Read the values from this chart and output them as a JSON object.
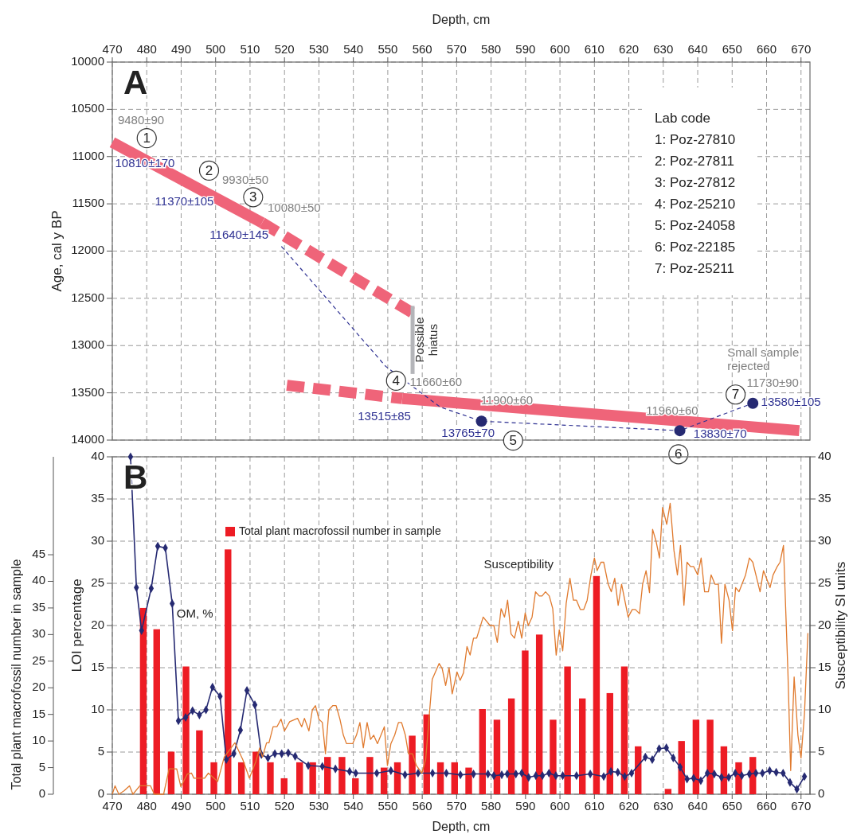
{
  "chart_data": [
    {
      "type": "line",
      "title": "A",
      "xlabel": "Depth, cm",
      "ylabel": "Age, cal y BP",
      "xlim": [
        470,
        672.6
      ],
      "xticks": [
        470,
        480,
        490,
        500,
        510,
        520,
        530,
        540,
        550,
        560,
        570,
        580,
        590,
        600,
        610,
        620,
        630,
        640,
        650,
        660,
        670
      ],
      "ylim": [
        14000,
        10000
      ],
      "yticks": [
        10000,
        10500,
        11000,
        11500,
        12000,
        12500,
        13000,
        13500,
        14000
      ],
      "grid": true,
      "legend": false,
      "series": [
        {
          "color": "#ef6479",
          "line_style": "solid",
          "x": [
            470,
            513.5
          ],
          "values": [
            10850,
            11700
          ]
        },
        {
          "color": "#ef6479",
          "line_style": "dashed",
          "x": [
            513.5,
            557
          ],
          "values": [
            11700,
            12650
          ]
        },
        {
          "color": "#ef6479",
          "line_style": "dashed",
          "x": [
            520.7,
            554.2
          ],
          "values": [
            13420,
            13560
          ]
        },
        {
          "color": "#ef6479",
          "line_style": "solid",
          "x": [
            554.2,
            669.5
          ],
          "values": [
            13560,
            13900
          ]
        },
        {
          "name": "Possible hiatus",
          "color": "#b4b5b9",
          "line_style": "solid",
          "x": [
            557.2,
            557.2
          ],
          "values": [
            12580,
            13300
          ]
        },
        {
          "color": "#2e3192",
          "line_style": "dashed",
          "marker": "none",
          "x": [
            519.1,
            549.4,
            565.2,
            577.2,
            634.8,
            656
          ],
          "values": [
            11950,
            13220,
            13650,
            13800,
            13900,
            13610
          ]
        },
        {
          "type": "scatter",
          "color": "#262a72",
          "marker": "circle",
          "x": [
            577.2,
            634.8,
            656
          ],
          "values": [
            13800,
            13900,
            13610
          ]
        }
      ],
      "annotations": [
        "9480±90",
        "10810±170",
        "9930±50",
        "11370±105",
        "10080±50",
        "11640±145",
        "11660±60",
        "13515±85",
        "11900±60",
        "13765±70",
        "11960±60",
        "13830±70",
        "11730±90",
        "13580±105",
        "Small sample rejected",
        "1",
        "2",
        "3",
        "4",
        "5",
        "6",
        "7",
        "Lab code",
        "1: Poz-27810",
        "2: Poz-27811",
        "3: Poz-27812",
        "4: Poz-25210",
        "5: Poz-24058",
        "6: Poz-22185",
        "7: Poz-25211"
      ]
    },
    {
      "type": "bar",
      "title": "B",
      "xlabel": "Depth, cm",
      "ylabel": "LOI percentage",
      "y2label": "Susceptibility SI units",
      "y3label": "Total plant macrofossil number in sample",
      "xlim": [
        470,
        672.6
      ],
      "xticks": [
        470,
        480,
        490,
        500,
        510,
        520,
        530,
        540,
        550,
        560,
        570,
        580,
        590,
        600,
        610,
        620,
        630,
        640,
        650,
        660,
        670
      ],
      "ylim": [
        0,
        40
      ],
      "yticks": [
        0,
        5,
        10,
        15,
        20,
        25,
        30,
        35,
        40
      ],
      "y2lim": [
        0,
        40
      ],
      "y2ticks": [
        0,
        5,
        10,
        15,
        20,
        25,
        30,
        35,
        40
      ],
      "y3lim": [
        0,
        63.4
      ],
      "y3ticks": [
        0,
        5,
        10,
        15,
        20,
        25,
        30,
        35,
        40,
        45
      ],
      "grid": true,
      "legend": "top left",
      "series": [
        {
          "name": "Total plant macrofossil number in sample",
          "color": "#ed1c24",
          "axis": "y3",
          "x": [
            479,
            482.9,
            487.1,
            491.4,
            495.3,
            499.5,
            503.6,
            507.5,
            511.7,
            515.9,
            519.9,
            524.4,
            528.2,
            532.5,
            536.7,
            540.6,
            544.8,
            548.9,
            552.8,
            557.1,
            561.3,
            565.3,
            569.4,
            573.5,
            577.5,
            581.7,
            585.9,
            589.9,
            594,
            598,
            602.2,
            606.5,
            610.6,
            614.5,
            618.7,
            622.7,
            631.4,
            635.3,
            639.5,
            643.6,
            647.6,
            651.9,
            656
          ],
          "values": [
            35,
            31,
            8,
            24,
            12,
            6,
            46,
            6,
            8,
            6,
            3,
            6,
            6,
            7,
            7,
            3,
            7,
            5,
            6,
            11,
            15,
            6,
            6,
            5,
            16,
            14,
            18,
            27,
            30,
            14,
            24,
            18,
            41,
            19,
            24,
            9,
            1,
            10,
            14,
            14,
            9,
            6,
            7
          ]
        },
        {
          "type": "line",
          "color": "#262a72",
          "axis": "y",
          "marker": "diamond",
          "x": [
            475.3,
            477,
            478.5,
            481.3,
            483.2,
            485.4,
            487.4,
            489.2,
            491.3,
            493.3,
            495.3,
            497.2,
            499.1,
            501.3,
            503.1,
            505.3,
            507.2,
            509.1,
            511.4,
            513.3,
            515.2,
            517.2,
            519.2,
            521.1,
            523.1,
            526.9,
            531,
            534.8,
            538.9,
            540.7,
            546.8,
            550.9,
            555,
            558.8,
            563,
            567,
            571.1,
            574.9,
            579.1,
            580.8,
            583.1,
            584.7,
            587.2,
            588.9,
            590.9,
            593,
            594.9,
            596.8,
            598.8,
            600.8,
            604.8,
            608.8,
            612.7,
            614.8,
            616.8,
            618.8,
            620.8,
            624.8,
            626.8,
            628.8,
            630.9,
            632.9,
            634.9,
            636.9,
            638.8,
            640.9,
            642.8,
            644.8,
            646.9,
            649,
            650.9,
            652.8,
            655,
            656.9,
            658.8,
            660.9,
            662.8,
            664.8,
            666.8,
            668.8,
            671
          ],
          "values": [
            40,
            24.5,
            19.4,
            24.4,
            29.4,
            29.2,
            22.6,
            8.7,
            9.1,
            9.9,
            9.4,
            10,
            12.7,
            11.6,
            4.1,
            4.8,
            7.6,
            12.3,
            10.6,
            4.7,
            4.3,
            4.8,
            4.8,
            4.9,
            4.5,
            3.4,
            3.3,
            3,
            2.7,
            2.5,
            2.5,
            2.8,
            2.3,
            2.5,
            2.5,
            2.5,
            2.3,
            2.4,
            2.4,
            2.2,
            2.3,
            2.4,
            2.4,
            2.5,
            2,
            2.2,
            2.2,
            2.5,
            2.2,
            2.2,
            2.2,
            2.4,
            2.1,
            2.7,
            2.6,
            2.1,
            2.5,
            4.4,
            4.1,
            5.4,
            5.5,
            4.3,
            3.2,
            1.8,
            1.9,
            1.6,
            2.5,
            2.4,
            2,
            2,
            2.5,
            2.2,
            2.4,
            2.5,
            2.5,
            2.8,
            2.6,
            2.5,
            1.4,
            0.6,
            2.1
          ]
        },
        {
          "type": "line",
          "color": "#e07a2e",
          "axis": "y2",
          "marker": "none",
          "x": [
            470,
            470.8,
            471.9,
            473.4,
            475,
            476,
            478,
            481.1,
            482.2,
            484.9,
            486.5,
            488.7,
            489.9,
            491.8,
            493,
            493.7,
            496.8,
            497.9,
            500.6,
            502.5,
            505.6,
            507.9,
            509.8,
            511.7,
            512.8,
            513.6,
            514.8,
            515.5,
            516.7,
            517.8,
            519,
            520,
            521.5,
            523.8,
            525,
            525.8,
            527.1,
            528.1,
            529,
            530,
            531,
            531.9,
            532.9,
            534,
            535,
            536.1,
            537.1,
            538,
            539.8,
            540.9,
            541.9,
            542.9,
            544,
            545,
            545.9,
            547,
            549,
            549.9,
            550.9,
            552,
            553.1,
            554,
            555.1,
            556,
            557.2,
            558.3,
            559.9,
            561,
            562.9,
            564.9,
            565.8,
            566.8,
            567.8,
            568.7,
            570.1,
            571,
            572,
            573,
            573.9,
            574.9,
            575.8,
            576.8,
            577.7,
            579.7,
            580.8,
            581.8,
            582.9,
            583.9,
            584.8,
            585.8,
            586.8,
            587.9,
            588.9,
            589.9,
            590.8,
            591.9,
            592.9,
            594,
            594.8,
            595.8,
            596.9,
            597.9,
            598.9,
            599.8,
            600.8,
            601.8,
            602.9,
            603.9,
            604.8,
            605.9,
            606.9,
            607.9,
            609,
            610,
            610.8,
            611.9,
            612.7,
            614,
            614.9,
            615.9,
            616.9,
            617.9,
            619.8,
            621,
            621.9,
            623.1,
            624,
            625,
            626,
            626.9,
            627.9,
            628.9,
            629.8,
            631,
            632,
            633.1,
            634.1,
            635,
            636,
            636.9,
            637.9,
            638.8,
            640,
            641,
            642,
            643.1,
            643.9,
            645,
            646,
            646.9,
            647.9,
            649.1,
            650.1,
            651,
            652,
            653.9,
            655,
            656,
            656.9,
            658.1,
            659.1,
            661,
            661.9,
            663.1,
            663.9,
            664.9,
            666.2,
            667,
            668,
            669.1,
            670,
            671,
            672
          ],
          "values": [
            0,
            1,
            0,
            0.4,
            1,
            0,
            1,
            1,
            0,
            0,
            3,
            3,
            0.9,
            2.4,
            2.5,
            1.9,
            1.9,
            2.5,
            1.5,
            4.4,
            6.1,
            4.1,
            1.9,
            3.9,
            5.5,
            4.4,
            6.1,
            6.1,
            8,
            8,
            8.9,
            7.5,
            8.6,
            9,
            8,
            9,
            7.5,
            10,
            10.5,
            8.9,
            8.5,
            4.8,
            10,
            10.5,
            10.5,
            8.9,
            7,
            6,
            6,
            7,
            8.5,
            5.5,
            8.5,
            6.5,
            7,
            6,
            8,
            3.4,
            6,
            7,
            8.5,
            8.5,
            7,
            4.8,
            4.8,
            3.4,
            2.5,
            4.1,
            13.6,
            15.5,
            14.9,
            12.9,
            15,
            11.9,
            14.5,
            13.5,
            14.4,
            17.5,
            16.5,
            18.5,
            18.5,
            19.8,
            21,
            20,
            20,
            18,
            22,
            21,
            23,
            19,
            18.5,
            20.5,
            18.5,
            21.5,
            20,
            21,
            24,
            23.5,
            23.5,
            24,
            23.5,
            22,
            16.5,
            19.5,
            17,
            22.6,
            25.6,
            23,
            23,
            21.9,
            21.9,
            23,
            26,
            28,
            26.5,
            27.5,
            27.5,
            24.9,
            24,
            25.6,
            22.4,
            24.9,
            21,
            21.9,
            21.9,
            21.4,
            24.9,
            26.5,
            23.9,
            31.4,
            30,
            28,
            34,
            32,
            34.5,
            28.9,
            26,
            29.5,
            22.4,
            27.5,
            27,
            27,
            26,
            28,
            24,
            24,
            26,
            24.9,
            24.9,
            17.9,
            24.9,
            23,
            19.4,
            24.5,
            24,
            26,
            28,
            27.5,
            26,
            24,
            26.5,
            24.5,
            26,
            27,
            27.5,
            29.5,
            14.4,
            2.8,
            13.9,
            7,
            4.3,
            9.5,
            19.1
          ]
        }
      ],
      "annotations": [
        {
          "text": "OM, %",
          "x": 488.7,
          "y": 21.3
        },
        "Susceptibility"
      ]
    }
  ]
}
